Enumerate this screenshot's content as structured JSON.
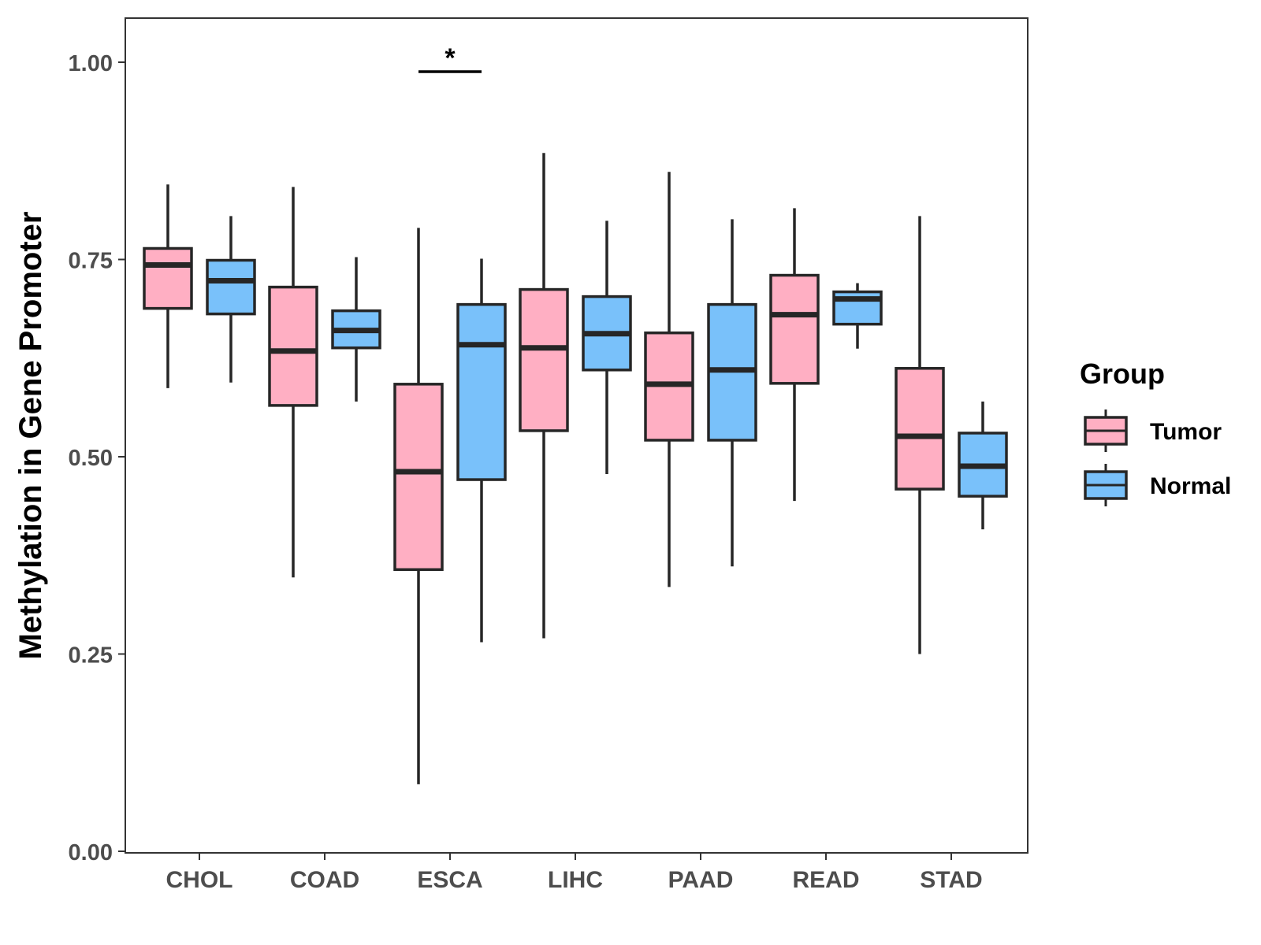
{
  "chart_data": {
    "type": "boxplot",
    "title": "",
    "xlabel": "",
    "ylabel": "Methylation in Gene Promoter",
    "ylim": [
      -0.03,
      1.06
    ],
    "yticks": [
      0.0,
      0.25,
      0.5,
      0.75,
      1.0
    ],
    "ytick_labels": [
      "0.00",
      "0.25",
      "0.50",
      "0.75",
      "1.00"
    ],
    "categories": [
      "CHOL",
      "COAD",
      "ESCA",
      "LIHC",
      "PAAD",
      "READ",
      "STAD"
    ],
    "grid": false,
    "legend": {
      "title": "Group",
      "position": "right",
      "entries": [
        {
          "name": "Tumor",
          "color": "#ffafc3"
        },
        {
          "name": "Normal",
          "color": "#79c1fa"
        }
      ]
    },
    "series": [
      {
        "name": "Tumor",
        "color": "#ffafc3",
        "boxes": [
          {
            "category": "CHOL",
            "min": 0.587,
            "q1": 0.688,
            "median": 0.743,
            "q3": 0.764,
            "max": 0.845
          },
          {
            "category": "COAD",
            "min": 0.347,
            "q1": 0.565,
            "median": 0.634,
            "q3": 0.715,
            "max": 0.842
          },
          {
            "category": "ESCA",
            "min": 0.085,
            "q1": 0.357,
            "median": 0.481,
            "q3": 0.592,
            "max": 0.79
          },
          {
            "category": "LIHC",
            "min": 0.27,
            "q1": 0.533,
            "median": 0.638,
            "q3": 0.712,
            "max": 0.885
          },
          {
            "category": "PAAD",
            "min": 0.335,
            "q1": 0.521,
            "median": 0.592,
            "q3": 0.657,
            "max": 0.861
          },
          {
            "category": "READ",
            "min": 0.444,
            "q1": 0.593,
            "median": 0.68,
            "q3": 0.73,
            "max": 0.815
          },
          {
            "category": "STAD",
            "min": 0.25,
            "q1": 0.459,
            "median": 0.526,
            "q3": 0.612,
            "max": 0.805
          }
        ]
      },
      {
        "name": "Normal",
        "color": "#79c1fa",
        "boxes": [
          {
            "category": "CHOL",
            "min": 0.594,
            "q1": 0.681,
            "median": 0.723,
            "q3": 0.749,
            "max": 0.805
          },
          {
            "category": "COAD",
            "min": 0.57,
            "q1": 0.638,
            "median": 0.66,
            "q3": 0.685,
            "max": 0.753
          },
          {
            "category": "ESCA",
            "min": 0.265,
            "q1": 0.471,
            "median": 0.642,
            "q3": 0.693,
            "max": 0.751
          },
          {
            "category": "LIHC",
            "min": 0.478,
            "q1": 0.61,
            "median": 0.656,
            "q3": 0.703,
            "max": 0.799
          },
          {
            "category": "PAAD",
            "min": 0.361,
            "q1": 0.521,
            "median": 0.61,
            "q3": 0.693,
            "max": 0.801
          },
          {
            "category": "READ",
            "min": 0.637,
            "q1": 0.668,
            "median": 0.7,
            "q3": 0.709,
            "max": 0.72
          },
          {
            "category": "STAD",
            "min": 0.408,
            "q1": 0.45,
            "median": 0.488,
            "q3": 0.53,
            "max": 0.57
          }
        ]
      }
    ],
    "annotations": [
      {
        "category": "ESCA",
        "text": "*",
        "y": 0.988
      }
    ]
  }
}
